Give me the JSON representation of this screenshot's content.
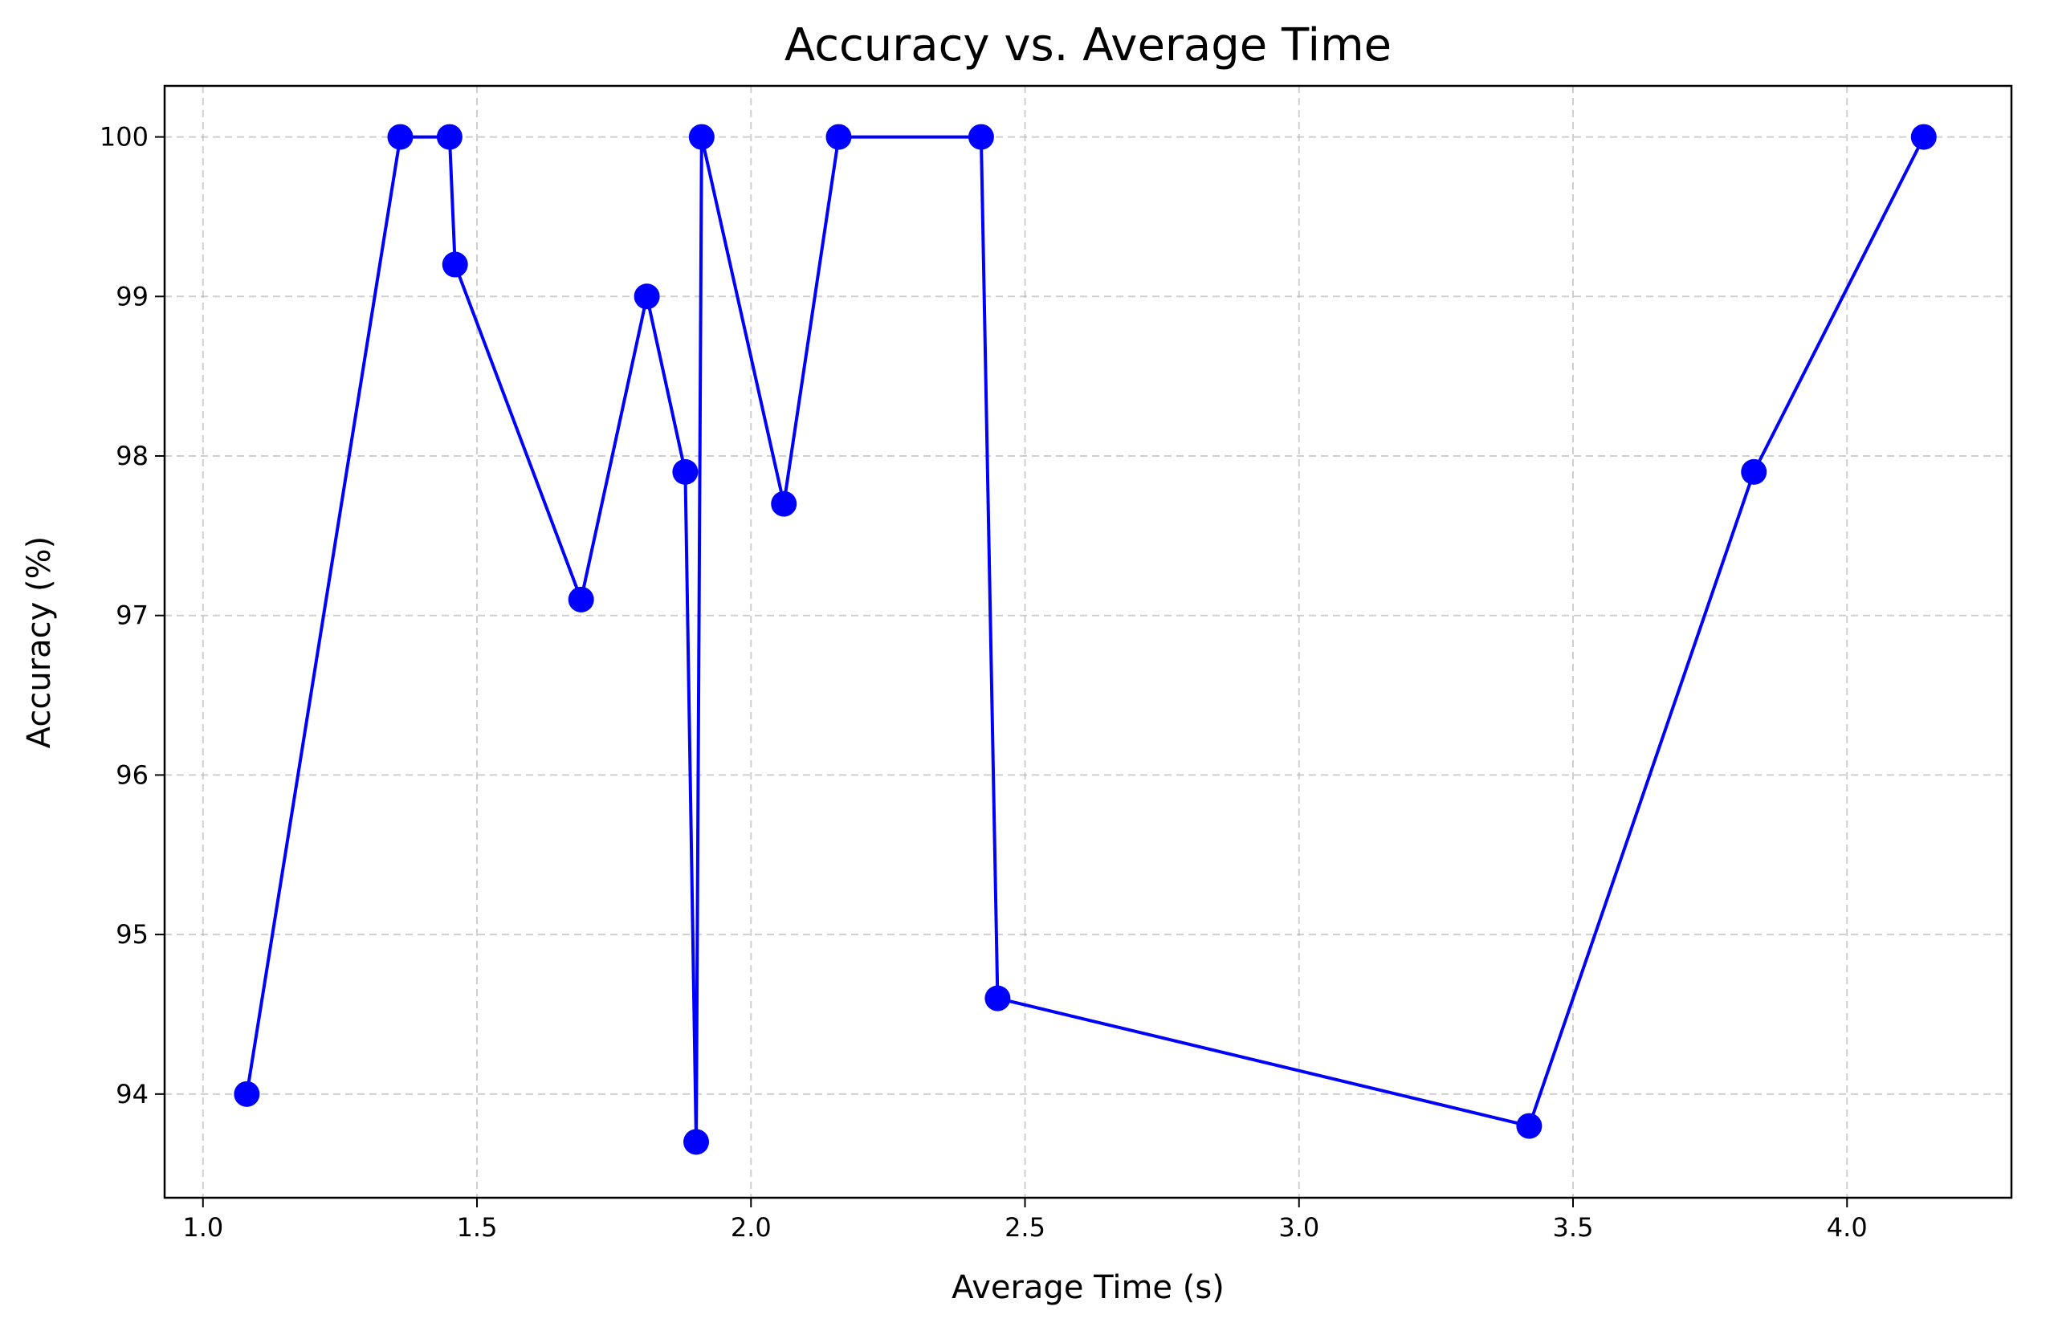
{
  "chart_data": {
    "type": "line",
    "title": "Accuracy vs. Average Time",
    "xlabel": "Average Time (s)",
    "ylabel": "Accuracy (%)",
    "xlim": [
      0.93,
      4.3
    ],
    "ylim": [
      93.35,
      100.32
    ],
    "xticks": [
      1.0,
      1.5,
      2.0,
      2.5,
      3.0,
      3.5,
      4.0
    ],
    "xtick_labels": [
      "1.0",
      "1.5",
      "2.0",
      "2.5",
      "3.0",
      "3.5",
      "4.0"
    ],
    "yticks": [
      94,
      95,
      96,
      97,
      98,
      99,
      100
    ],
    "ytick_labels": [
      "94",
      "95",
      "96",
      "97",
      "98",
      "99",
      "100"
    ],
    "grid": true,
    "marker": "circle",
    "color": "#0000ff",
    "series": [
      {
        "x": [
          1.08,
          1.36,
          1.45,
          1.46,
          1.69,
          1.81,
          1.88,
          1.9,
          1.91,
          2.06,
          2.16,
          2.42,
          2.45,
          3.42,
          3.83,
          4.14
        ],
        "y": [
          94.0,
          100.0,
          100.0,
          99.2,
          97.1,
          99.0,
          97.9,
          93.7,
          100.0,
          97.7,
          100.0,
          100.0,
          94.6,
          93.8,
          97.9,
          100.0
        ]
      }
    ]
  }
}
